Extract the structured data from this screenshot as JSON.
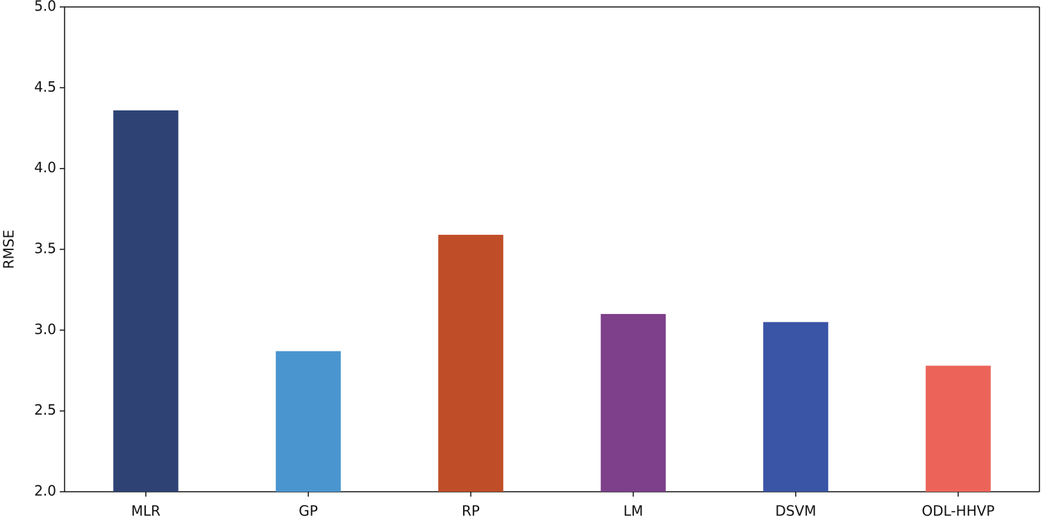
{
  "chart_data": {
    "type": "bar",
    "ylabel": "RMSE",
    "categories": [
      "MLR",
      "GP",
      "RP",
      "LM",
      "DSVM",
      "ODL-HHVP"
    ],
    "values": [
      4.36,
      2.87,
      3.59,
      3.1,
      3.05,
      2.78
    ],
    "colors": [
      "#2e4374",
      "#4a95d0",
      "#bf4e28",
      "#7e3f8b",
      "#3a54a6",
      "#ec6459"
    ],
    "ylim": [
      2.0,
      5.0
    ],
    "yticks": [
      {
        "value": 2.0,
        "label": "2.0"
      },
      2.5,
      {
        "value": 3.0,
        "label": "3.0"
      },
      3.5,
      {
        "value": 4.0,
        "label": "4.0"
      },
      4.5,
      {
        "value": 5.0,
        "label": "5.0"
      }
    ],
    "grid": false
  }
}
